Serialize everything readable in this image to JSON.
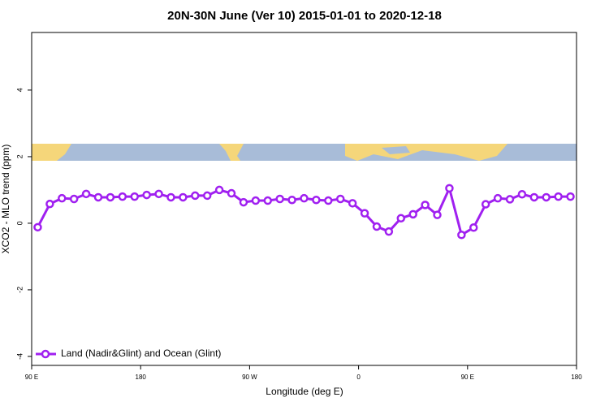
{
  "chart_data": {
    "type": "line",
    "title": "20N-30N June (Ver 10)   2015-01-01 to 2020-12-18",
    "x_label": "Longitude (deg E)",
    "y_label": "XCO2 - MLO trend (ppm)",
    "x": [
      95,
      105,
      115,
      125,
      135,
      145,
      155,
      165,
      175,
      185,
      195,
      205,
      215,
      225,
      235,
      245,
      255,
      265,
      275,
      285,
      295,
      305,
      315,
      325,
      335,
      345,
      355,
      365,
      375,
      385,
      395,
      405,
      415,
      425,
      435,
      445,
      455,
      465,
      475,
      485,
      495,
      505,
      515,
      525,
      535
    ],
    "series": [
      {
        "name": "Land (Nadir&Glint) and Ocean (Glint)",
        "color": "#a020f0",
        "values": [
          -0.12,
          0.58,
          0.75,
          0.73,
          0.88,
          0.78,
          0.78,
          0.8,
          0.8,
          0.85,
          0.88,
          0.78,
          0.78,
          0.83,
          0.83,
          1.0,
          0.9,
          0.63,
          0.68,
          0.68,
          0.73,
          0.7,
          0.75,
          0.7,
          0.68,
          0.73,
          0.6,
          0.3,
          -0.1,
          -0.25,
          0.15,
          0.27,
          0.55,
          0.25,
          1.05,
          -0.35,
          -0.13,
          0.57,
          0.75,
          0.72,
          0.87,
          0.78,
          0.78,
          0.8,
          0.8
        ]
      }
    ],
    "xlim": [
      90,
      540
    ],
    "xticks": [
      {
        "value": 90,
        "label": "90 E"
      },
      180,
      {
        "value": 270,
        "label": "90 W"
      },
      {
        "value": 360,
        "label": "0"
      },
      {
        "value": 450,
        "label": "90 E"
      },
      {
        "value": 540,
        "label": "180"
      }
    ],
    "ylim": [
      -4.27,
      5.73
    ],
    "yticks": [
      -4,
      -2,
      0,
      2,
      4
    ],
    "legend": "bottom-left"
  }
}
